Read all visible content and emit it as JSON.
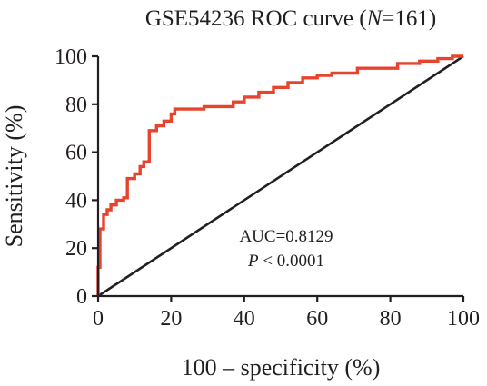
{
  "chart_data": {
    "type": "line",
    "title_prefix": "GSE54236 ROC curve (",
    "title_italic": "N",
    "title_suffix": "=161)",
    "xlabel": "100 – specificity (%)",
    "ylabel": "Sensitivity (%)",
    "xlim": [
      0,
      100
    ],
    "ylim": [
      0,
      100
    ],
    "x_ticks": [
      "0",
      "20",
      "40",
      "60",
      "80",
      "100"
    ],
    "y_ticks": [
      "0",
      "20",
      "40",
      "60",
      "80",
      "100"
    ],
    "grid": false,
    "annotations": {
      "auc": "AUC=0.8129",
      "p_italic": "P",
      "p_rest": " < 0.0001"
    },
    "colors": {
      "roc": "#e8432d",
      "reference": "#231f20",
      "axis": "#231f20"
    },
    "series": [
      {
        "values": [
          [
            0,
            0
          ],
          [
            0,
            12
          ],
          [
            0.5,
            12
          ],
          [
            0.5,
            28
          ],
          [
            1.5,
            28
          ],
          [
            1.5,
            34
          ],
          [
            2.5,
            34
          ],
          [
            2.5,
            36
          ],
          [
            3.5,
            36
          ],
          [
            3.5,
            38
          ],
          [
            5,
            38
          ],
          [
            5,
            40
          ],
          [
            7,
            40
          ],
          [
            7,
            41
          ],
          [
            8,
            41
          ],
          [
            8,
            49
          ],
          [
            10,
            49
          ],
          [
            10,
            51
          ],
          [
            11.5,
            51
          ],
          [
            11.5,
            54
          ],
          [
            12.5,
            54
          ],
          [
            12.5,
            56
          ],
          [
            14,
            56
          ],
          [
            14,
            69
          ],
          [
            16,
            69
          ],
          [
            16,
            71
          ],
          [
            18,
            71
          ],
          [
            18,
            73
          ],
          [
            20,
            73
          ],
          [
            20,
            76
          ],
          [
            21,
            76
          ],
          [
            21,
            78
          ],
          [
            29,
            78
          ],
          [
            29,
            79
          ],
          [
            37,
            79
          ],
          [
            37,
            81
          ],
          [
            40,
            81
          ],
          [
            40,
            83
          ],
          [
            44,
            83
          ],
          [
            44,
            85
          ],
          [
            48,
            85
          ],
          [
            48,
            87
          ],
          [
            52,
            87
          ],
          [
            52,
            89
          ],
          [
            56,
            89
          ],
          [
            56,
            91
          ],
          [
            60,
            91
          ],
          [
            60,
            92
          ],
          [
            64,
            92
          ],
          [
            64,
            93
          ],
          [
            71,
            93
          ],
          [
            71,
            95
          ],
          [
            82,
            95
          ],
          [
            82,
            97
          ],
          [
            88,
            97
          ],
          [
            88,
            98
          ],
          [
            93,
            98
          ],
          [
            93,
            99
          ],
          [
            97,
            99
          ],
          [
            97,
            100
          ],
          [
            100,
            100
          ]
        ]
      },
      {
        "values": [
          [
            0,
            0
          ],
          [
            100,
            100
          ]
        ]
      }
    ]
  }
}
